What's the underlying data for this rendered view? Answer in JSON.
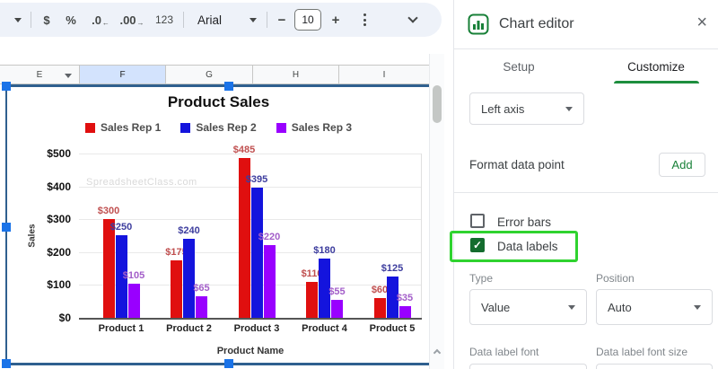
{
  "toolbar": {
    "currency_label": "$",
    "percent_label": "%",
    "decrease_decimal_label": ".0",
    "increase_decimal_label": ".00",
    "number_format_label": "123",
    "font_family": "Arial",
    "font_size": "10"
  },
  "sheet": {
    "column_headers": [
      "E",
      "F",
      "G",
      "H",
      "I"
    ],
    "selected_column": "F"
  },
  "chart_data": {
    "type": "bar",
    "title": "Product Sales",
    "categories": [
      "Product 1",
      "Product 2",
      "Product 3",
      "Product 4",
      "Product 5"
    ],
    "series": [
      {
        "name": "Sales Rep 1",
        "color": "#e00f0f",
        "label_color": "#c05050",
        "values": [
          300,
          175,
          485,
          110,
          60
        ]
      },
      {
        "name": "Sales Rep 2",
        "color": "#1414dd",
        "label_color": "#3d3d9e",
        "values": [
          250,
          240,
          395,
          180,
          125
        ]
      },
      {
        "name": "Sales Rep 3",
        "color": "#9900ff",
        "label_color": "#a35ec9",
        "values": [
          105,
          65,
          220,
          55,
          35
        ]
      }
    ],
    "xlabel": "Product Name",
    "ylabel": "Sales",
    "ylim": [
      0,
      500
    ],
    "y_tick_values": [
      0,
      100,
      200,
      300,
      400,
      500
    ],
    "y_tick_prefix": "$",
    "data_label_prefix": "$",
    "data_labels": true,
    "grid": true,
    "legend_position": "top",
    "watermark": "SpreadsheetClass.com"
  },
  "panel": {
    "title": "Chart editor",
    "tabs": {
      "setup": "Setup",
      "customize": "Customize",
      "active": "Customize"
    },
    "axis_selector_value": "Left axis",
    "format_data_point_label": "Format data point",
    "add_button_label": "Add",
    "error_bars": {
      "label": "Error bars",
      "checked": false
    },
    "data_labels": {
      "label": "Data labels",
      "checked": true,
      "checkmark": "✓",
      "highlighted": true
    },
    "type_field": {
      "label": "Type",
      "value": "Value"
    },
    "position_field": {
      "label": "Position",
      "value": "Auto"
    },
    "font_field_label": "Data label font",
    "font_size_field_label": "Data label font size",
    "close_glyph": "×"
  },
  "colors": {
    "accent_green": "#188038",
    "highlight_green": "#2fd32f",
    "selection_blue": "#1a73e8",
    "selected_column_bg": "#d3e3fd"
  }
}
